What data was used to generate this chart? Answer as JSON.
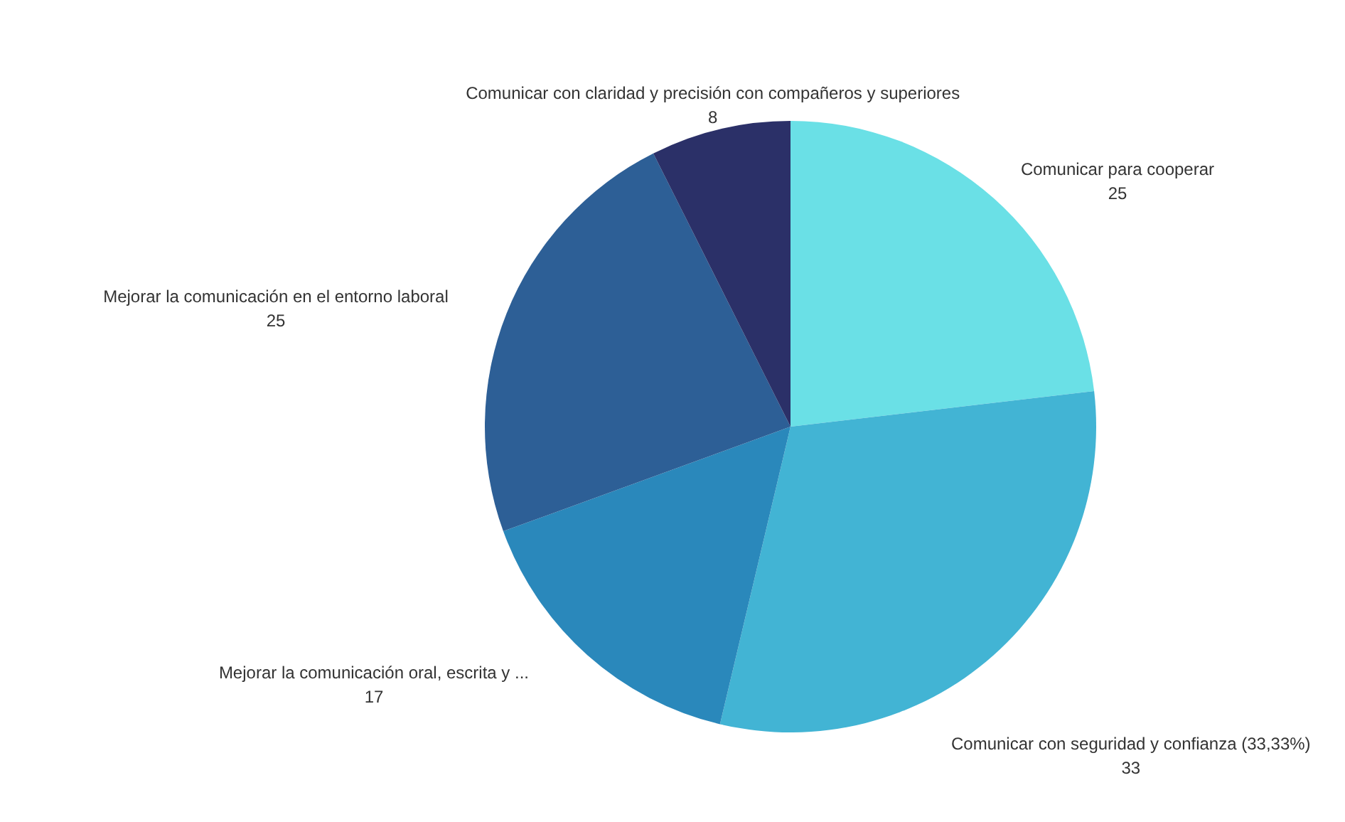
{
  "chart_data": {
    "type": "pie",
    "categories": [
      "Comunicar para cooperar",
      "Comunicar con seguridad y confianza (33,33%)",
      "Mejorar la comunicación oral, escrita y ...",
      "Mejorar la comunicación en el entorno laboral",
      "Comunicar con claridad y precisión con compañeros y superiores"
    ],
    "values": [
      25,
      33,
      17,
      25,
      8
    ],
    "colors": [
      "#6ae0e6",
      "#42b4d4",
      "#2a88bb",
      "#2d5f96",
      "#2b3068"
    ],
    "data_labels": true
  }
}
